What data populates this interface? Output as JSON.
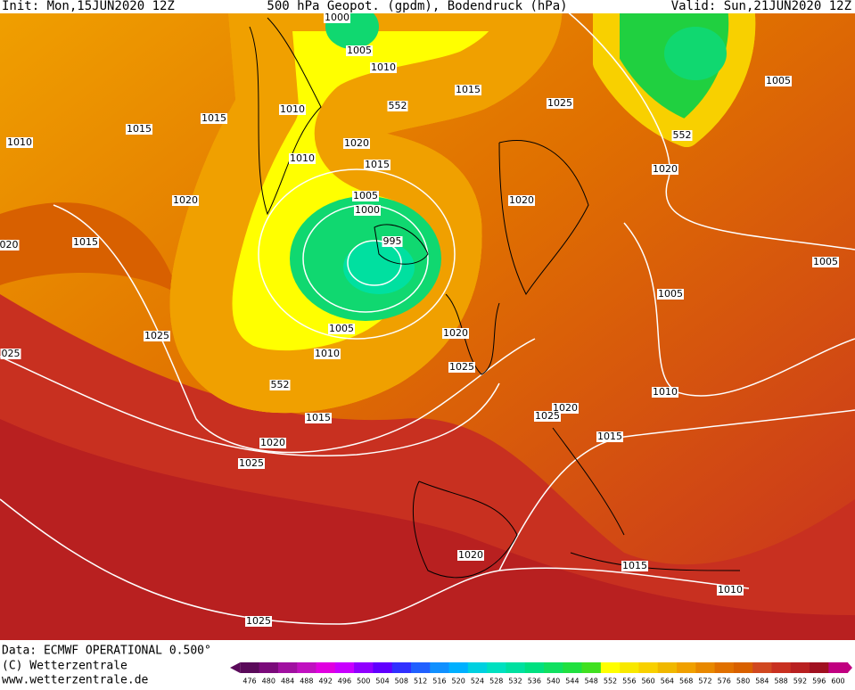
{
  "header": {
    "init": "Init: Mon,15JUN2020 12Z",
    "title": "500 hPa Geopot. (gpdm), Bodendruck (hPa)",
    "valid": "Valid: Sun,21JUN2020 12Z"
  },
  "footer": {
    "data": "Data: ECMWF OPERATIONAL 0.500°",
    "copyright": "(C) Wetterzentrale",
    "url": "www.wetterzentrale.de"
  },
  "isobar_labels": [
    "1000",
    "1005",
    "1010",
    "1010",
    "1015",
    "1015",
    "1010",
    "552",
    "1015",
    "1025",
    "1005",
    "552",
    "1020",
    "1010",
    "1015",
    "1020",
    "1005",
    "1000",
    "1020",
    "1020",
    "1015",
    "020",
    "995",
    "1005",
    "1005",
    "1025",
    "1005",
    "1020",
    "1010",
    "025",
    "1025",
    "552",
    "1010",
    "1020",
    "1025",
    "1015",
    "1015",
    "1020",
    "1025",
    "1020",
    "1015",
    "1010",
    "1025"
  ],
  "colorbar": {
    "labels": [
      476,
      480,
      484,
      488,
      492,
      496,
      500,
      504,
      508,
      512,
      516,
      520,
      524,
      528,
      532,
      536,
      540,
      544,
      548,
      552,
      556,
      560,
      564,
      568,
      572,
      576,
      580,
      584,
      588,
      592,
      596,
      600
    ],
    "colors": [
      "#5a0a5a",
      "#7a0a7a",
      "#a010a0",
      "#c010c0",
      "#e000e0",
      "#c800ff",
      "#9000ff",
      "#6000ff",
      "#3030ff",
      "#2060ff",
      "#1090ff",
      "#00b0ff",
      "#00d0e0",
      "#00e0c0",
      "#00e0a0",
      "#00e080",
      "#10e060",
      "#20e040",
      "#40e020",
      "#ffff00",
      "#f8e800",
      "#f8d000",
      "#f0b800",
      "#f0a000",
      "#e88800",
      "#e07000",
      "#d86000",
      "#d04820",
      "#c83020",
      "#b82020",
      "#a01020",
      "#c00080"
    ]
  }
}
